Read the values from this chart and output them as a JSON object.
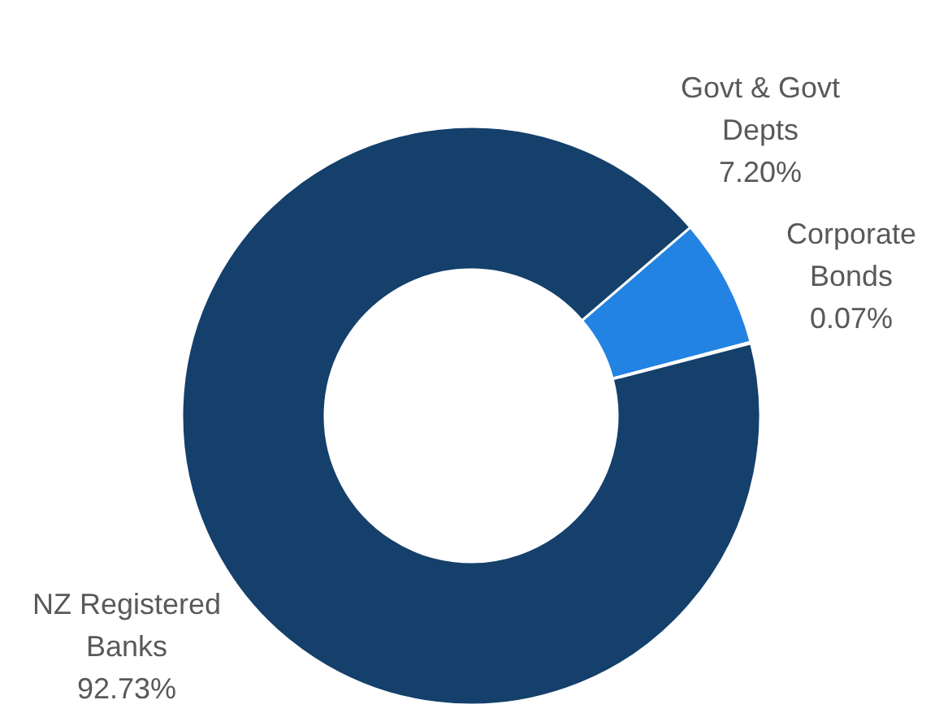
{
  "chart_data": {
    "type": "donut",
    "categories": [
      "Govt & Govt Depts",
      "Corporate Bonds",
      "NZ Registered Banks"
    ],
    "values": [
      7.2,
      0.07,
      92.73
    ],
    "value_labels": [
      "7.20%",
      "0.07%",
      "92.73%"
    ],
    "colors": [
      "#2383e2",
      "#2e75b6",
      "#14406b"
    ],
    "legend": false
  }
}
